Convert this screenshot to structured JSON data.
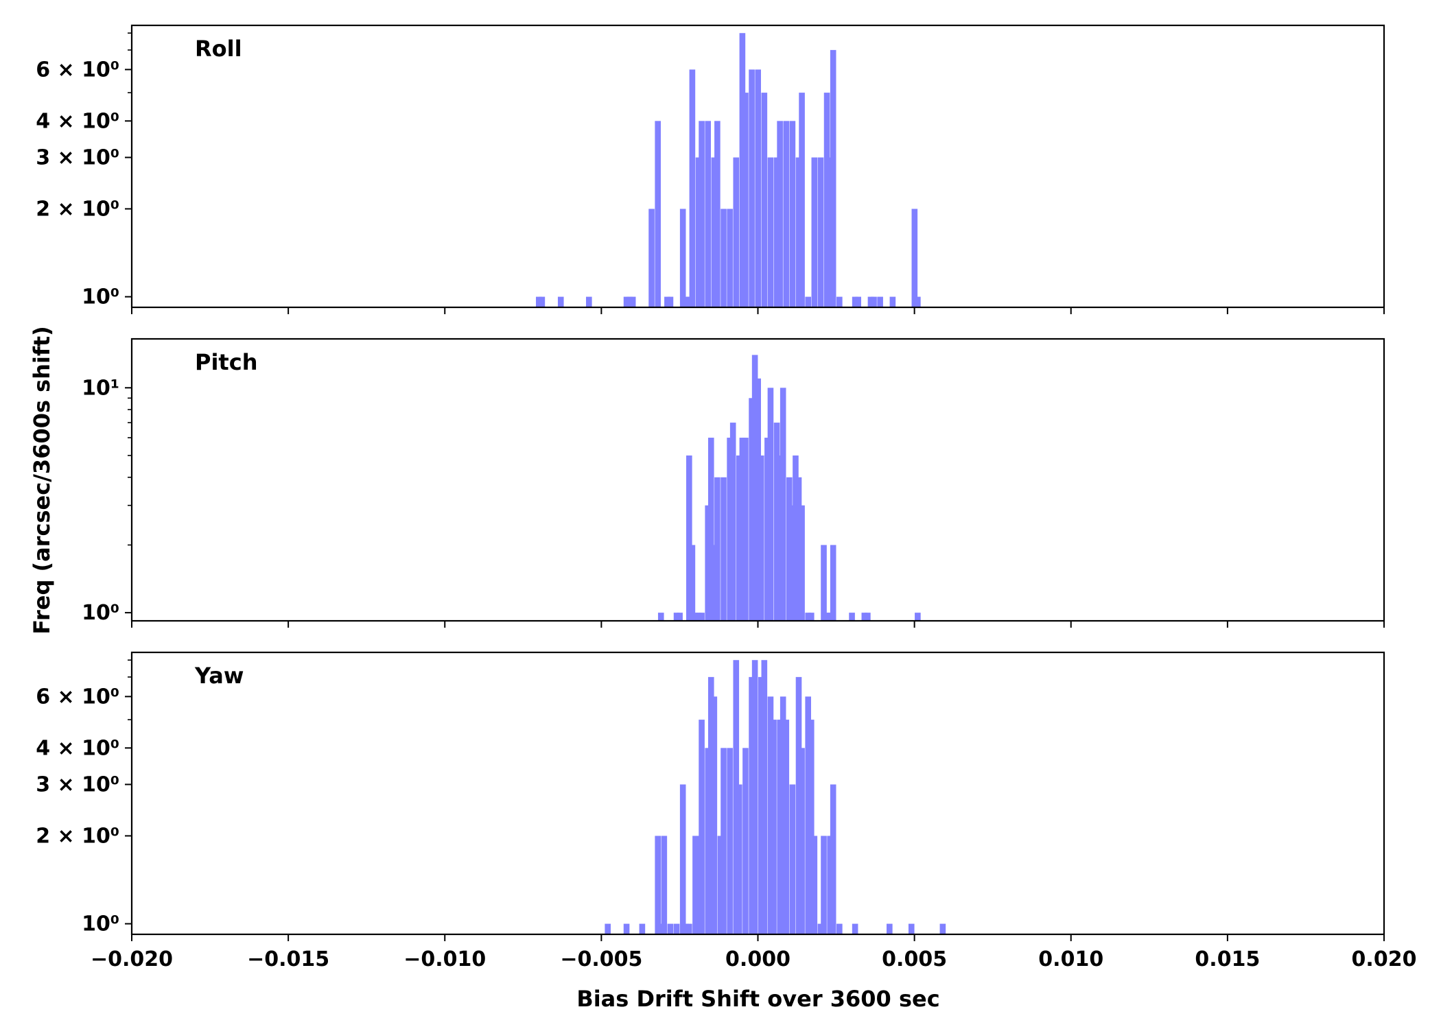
{
  "figure": {
    "xlabel": "Bias Drift Shift over 3600 sec",
    "ylabel": "Freq (arcsec/3600s shift)"
  },
  "chart_data": [
    {
      "type": "bar",
      "title": "Roll",
      "y_scale": "log",
      "xlim": [
        -0.02,
        0.02
      ],
      "ylim": [
        0.92,
        8.5
      ],
      "bin_width": 0.00018,
      "y_ticks": [
        {
          "value": 1,
          "label": "10⁰"
        },
        {
          "value": 2,
          "label": "2 × 10⁰"
        },
        {
          "value": 3,
          "label": "3 × 10⁰"
        },
        {
          "value": 4,
          "label": "4 × 10⁰"
        },
        {
          "value": 6,
          "label": "6 × 10⁰"
        }
      ],
      "x_tick_labels_shown": false,
      "bins": [
        {
          "x": -0.007,
          "y": 1
        },
        {
          "x": -0.0069,
          "y": 1
        },
        {
          "x": -0.0063,
          "y": 1
        },
        {
          "x": -0.0054,
          "y": 1
        },
        {
          "x": -0.0042,
          "y": 1
        },
        {
          "x": -0.0041,
          "y": 1
        },
        {
          "x": -0.004,
          "y": 1
        },
        {
          "x": -0.0034,
          "y": 2
        },
        {
          "x": -0.0032,
          "y": 4
        },
        {
          "x": -0.0029,
          "y": 1
        },
        {
          "x": -0.0028,
          "y": 1
        },
        {
          "x": -0.0024,
          "y": 2
        },
        {
          "x": -0.0023,
          "y": 1
        },
        {
          "x": -0.0022,
          "y": 1
        },
        {
          "x": -0.0021,
          "y": 6
        },
        {
          "x": -0.0019,
          "y": 3
        },
        {
          "x": -0.0018,
          "y": 4
        },
        {
          "x": -0.0016,
          "y": 4
        },
        {
          "x": -0.0014,
          "y": 3
        },
        {
          "x": -0.0013,
          "y": 4
        },
        {
          "x": -0.0011,
          "y": 2
        },
        {
          "x": -0.0009,
          "y": 2
        },
        {
          "x": -0.0007,
          "y": 3
        },
        {
          "x": -0.0005,
          "y": 8
        },
        {
          "x": -0.0004,
          "y": 5
        },
        {
          "x": -0.0002,
          "y": 6
        },
        {
          "x": 0.0,
          "y": 6
        },
        {
          "x": 0.0002,
          "y": 5
        },
        {
          "x": 0.0004,
          "y": 3
        },
        {
          "x": 0.0006,
          "y": 3
        },
        {
          "x": 0.0007,
          "y": 4
        },
        {
          "x": 0.0009,
          "y": 4
        },
        {
          "x": 0.0011,
          "y": 4
        },
        {
          "x": 0.0013,
          "y": 3
        },
        {
          "x": 0.0014,
          "y": 5
        },
        {
          "x": 0.0016,
          "y": 1
        },
        {
          "x": 0.0018,
          "y": 3
        },
        {
          "x": 0.002,
          "y": 3
        },
        {
          "x": 0.0022,
          "y": 5
        },
        {
          "x": 0.0023,
          "y": 3
        },
        {
          "x": 0.0024,
          "y": 7
        },
        {
          "x": 0.0026,
          "y": 1
        },
        {
          "x": 0.0031,
          "y": 1
        },
        {
          "x": 0.0032,
          "y": 1
        },
        {
          "x": 0.0036,
          "y": 1
        },
        {
          "x": 0.0037,
          "y": 1
        },
        {
          "x": 0.0039,
          "y": 1
        },
        {
          "x": 0.0043,
          "y": 1
        },
        {
          "x": 0.005,
          "y": 2
        },
        {
          "x": 0.0051,
          "y": 1
        }
      ]
    },
    {
      "type": "bar",
      "title": "Pitch",
      "y_scale": "log",
      "xlim": [
        -0.02,
        0.02
      ],
      "ylim": [
        0.92,
        16.5
      ],
      "bin_width": 0.00018,
      "y_ticks": [
        {
          "value": 1,
          "label": "10⁰"
        },
        {
          "value": 10,
          "label": "10¹"
        }
      ],
      "x_tick_labels_shown": false,
      "bins": [
        {
          "x": -0.0031,
          "y": 1
        },
        {
          "x": -0.0026,
          "y": 1
        },
        {
          "x": -0.0025,
          "y": 1
        },
        {
          "x": -0.0022,
          "y": 5
        },
        {
          "x": -0.0021,
          "y": 2
        },
        {
          "x": -0.002,
          "y": 1
        },
        {
          "x": -0.0019,
          "y": 1
        },
        {
          "x": -0.0018,
          "y": 1
        },
        {
          "x": -0.0016,
          "y": 3
        },
        {
          "x": -0.0015,
          "y": 6
        },
        {
          "x": -0.0014,
          "y": 2
        },
        {
          "x": -0.0013,
          "y": 4
        },
        {
          "x": -0.0011,
          "y": 4
        },
        {
          "x": -0.0009,
          "y": 6
        },
        {
          "x": -0.0008,
          "y": 7
        },
        {
          "x": -0.0006,
          "y": 5
        },
        {
          "x": -0.0005,
          "y": 6
        },
        {
          "x": -0.0004,
          "y": 6
        },
        {
          "x": -0.0002,
          "y": 9
        },
        {
          "x": -0.0001,
          "y": 14
        },
        {
          "x": 0.0,
          "y": 11
        },
        {
          "x": 0.0001,
          "y": 5
        },
        {
          "x": 0.0003,
          "y": 6
        },
        {
          "x": 0.0004,
          "y": 10
        },
        {
          "x": 0.0006,
          "y": 7
        },
        {
          "x": 0.0007,
          "y": 5
        },
        {
          "x": 0.0008,
          "y": 10
        },
        {
          "x": 0.001,
          "y": 4
        },
        {
          "x": 0.0011,
          "y": 3
        },
        {
          "x": 0.0012,
          "y": 5
        },
        {
          "x": 0.0013,
          "y": 4
        },
        {
          "x": 0.0014,
          "y": 3
        },
        {
          "x": 0.0016,
          "y": 1
        },
        {
          "x": 0.0017,
          "y": 1
        },
        {
          "x": 0.0021,
          "y": 2
        },
        {
          "x": 0.0022,
          "y": 1
        },
        {
          "x": 0.0023,
          "y": 1
        },
        {
          "x": 0.0024,
          "y": 2
        },
        {
          "x": 0.003,
          "y": 1
        },
        {
          "x": 0.0034,
          "y": 1
        },
        {
          "x": 0.0035,
          "y": 1
        },
        {
          "x": 0.0051,
          "y": 1
        }
      ]
    },
    {
      "type": "bar",
      "title": "Yaw",
      "y_scale": "log",
      "xlim": [
        -0.02,
        0.02
      ],
      "ylim": [
        0.92,
        8.5
      ],
      "bin_width": 0.00018,
      "y_ticks": [
        {
          "value": 1,
          "label": "10⁰"
        },
        {
          "value": 2,
          "label": "2 × 10⁰"
        },
        {
          "value": 3,
          "label": "3 × 10⁰"
        },
        {
          "value": 4,
          "label": "4 × 10⁰"
        },
        {
          "value": 6,
          "label": "6 × 10⁰"
        }
      ],
      "x_tick_labels_shown": true,
      "x_ticks": [
        {
          "value": -0.02,
          "label": "−0.020"
        },
        {
          "value": -0.015,
          "label": "−0.015"
        },
        {
          "value": -0.01,
          "label": "−0.010"
        },
        {
          "value": -0.005,
          "label": "−0.005"
        },
        {
          "value": 0.0,
          "label": "0.000"
        },
        {
          "value": 0.005,
          "label": "0.005"
        },
        {
          "value": 0.01,
          "label": "0.010"
        },
        {
          "value": 0.015,
          "label": "0.015"
        },
        {
          "value": 0.02,
          "label": "0.020"
        }
      ],
      "bins": [
        {
          "x": -0.0048,
          "y": 1
        },
        {
          "x": -0.0042,
          "y": 1
        },
        {
          "x": -0.0037,
          "y": 1
        },
        {
          "x": -0.0032,
          "y": 2
        },
        {
          "x": -0.0031,
          "y": 1
        },
        {
          "x": -0.003,
          "y": 2
        },
        {
          "x": -0.0028,
          "y": 1
        },
        {
          "x": -0.0026,
          "y": 1
        },
        {
          "x": -0.0024,
          "y": 3
        },
        {
          "x": -0.0023,
          "y": 1
        },
        {
          "x": -0.0022,
          "y": 1
        },
        {
          "x": -0.002,
          "y": 2
        },
        {
          "x": -0.0019,
          "y": 2
        },
        {
          "x": -0.0018,
          "y": 5
        },
        {
          "x": -0.0016,
          "y": 4
        },
        {
          "x": -0.0015,
          "y": 7
        },
        {
          "x": -0.0014,
          "y": 6
        },
        {
          "x": -0.0012,
          "y": 2
        },
        {
          "x": -0.0011,
          "y": 4
        },
        {
          "x": -0.0009,
          "y": 4
        },
        {
          "x": -0.0007,
          "y": 8
        },
        {
          "x": -0.0006,
          "y": 3
        },
        {
          "x": -0.0004,
          "y": 4
        },
        {
          "x": -0.0002,
          "y": 7
        },
        {
          "x": -0.0001,
          "y": 8
        },
        {
          "x": 0.0001,
          "y": 7
        },
        {
          "x": 0.0002,
          "y": 8
        },
        {
          "x": 0.0004,
          "y": 6
        },
        {
          "x": 0.0005,
          "y": 5
        },
        {
          "x": 0.0007,
          "y": 5
        },
        {
          "x": 0.0008,
          "y": 6
        },
        {
          "x": 0.0009,
          "y": 5
        },
        {
          "x": 0.0011,
          "y": 3
        },
        {
          "x": 0.0013,
          "y": 7
        },
        {
          "x": 0.0014,
          "y": 4
        },
        {
          "x": 0.0016,
          "y": 6
        },
        {
          "x": 0.0017,
          "y": 5
        },
        {
          "x": 0.0018,
          "y": 2
        },
        {
          "x": 0.002,
          "y": 1
        },
        {
          "x": 0.0021,
          "y": 2
        },
        {
          "x": 0.0023,
          "y": 2
        },
        {
          "x": 0.0024,
          "y": 3
        },
        {
          "x": 0.0026,
          "y": 1
        },
        {
          "x": 0.0031,
          "y": 1
        },
        {
          "x": 0.0042,
          "y": 1
        },
        {
          "x": 0.0049,
          "y": 1
        },
        {
          "x": 0.0059,
          "y": 1
        }
      ]
    }
  ],
  "colors": {
    "bars": "#8080ff",
    "axes": "#000000",
    "background": "#ffffff"
  }
}
